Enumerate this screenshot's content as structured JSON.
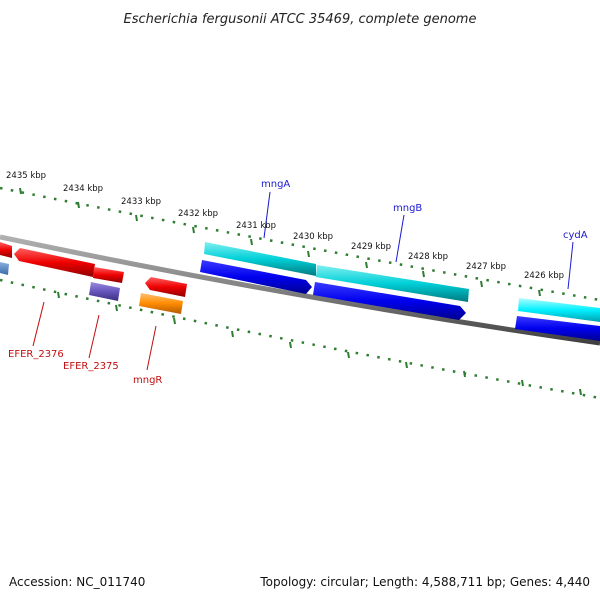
{
  "title": "Escherichia fergusonii ATCC 35469, complete genome",
  "footer": {
    "accession": "Accession: NC_011740",
    "topology": "Topology: circular; Length: 4,588,711 bp; Genes: 4,440"
  },
  "scale_labels": [
    "2435 kbp",
    "2434 kbp",
    "2433 kbp",
    "2432 kbp",
    "2431 kbp",
    "2430 kbp",
    "2429 kbp",
    "2428 kbp",
    "2427 kbp",
    "2426 kbp"
  ],
  "gene_labels": {
    "mngA": "mngA",
    "mngB": "mngB",
    "cydA": "cydA",
    "efer2376": "EFER_2376",
    "efer2375": "EFER_2375",
    "mngR": "mngR"
  },
  "colors": {
    "backbone": "#808080",
    "tick": "#2e7d32",
    "forward_cds": "#0000ee",
    "forward_track": "#00c8d0",
    "reverse_cds": "#ee0000",
    "other": "#6655bb",
    "mngR_track": "#ff8c00"
  }
}
